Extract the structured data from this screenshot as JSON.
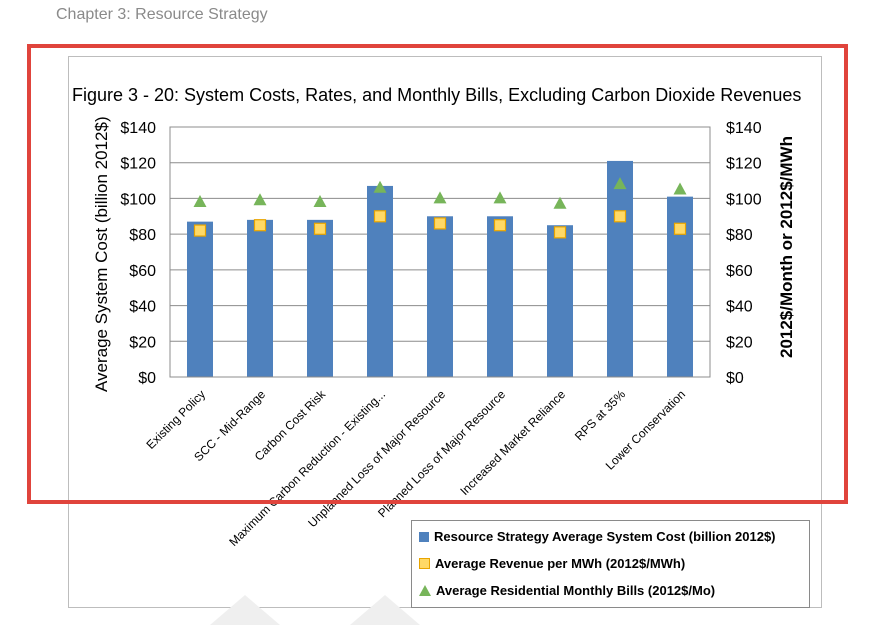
{
  "page": {
    "chapter_header": "Chapter 3: Resource Strategy"
  },
  "chart_data": {
    "type": "bar",
    "title": "Figure 3 - 20:  System Costs, Rates, and Monthly Bills, Excluding Carbon Dioxide Revenues",
    "ylabel": "Average System Cost (billion 2012$)",
    "y2label": "2012$/Month or 2012$/MWh",
    "ylim": [
      0,
      140
    ],
    "y2lim": [
      0,
      140
    ],
    "yticks": [
      "$0",
      "$20",
      "$40",
      "$60",
      "$80",
      "$100",
      "$120",
      "$140"
    ],
    "y2ticks": [
      "$0",
      "$20",
      "$40",
      "$60",
      "$80",
      "$100",
      "$120",
      "$140"
    ],
    "categories": [
      "Existing Policy",
      "SCC - Mid-Range",
      "Carbon Cost Risk",
      "Maximum Carbon Reduction - Existing...",
      "Unplanned Loss of Major Resource",
      "Planned Loss of Major Resource",
      "Increased Market Reliance",
      "RPS at 35%",
      "Lower Conservation"
    ],
    "series": [
      {
        "name": "Resource Strategy Average System Cost (billion 2012$)",
        "kind": "bar",
        "axis": "left",
        "color": "#4f81bd",
        "values": [
          87,
          88,
          88,
          107,
          90,
          90,
          85,
          121,
          101
        ]
      },
      {
        "name": "Average Revenue per MWh (2012$/MWh)",
        "kind": "square",
        "axis": "right",
        "color": "#ffd966",
        "values": [
          82,
          85,
          83,
          90,
          86,
          85,
          81,
          90,
          83
        ]
      },
      {
        "name": "Average Residential Monthly Bills (2012$/Mo)",
        "kind": "triangle",
        "axis": "right",
        "color": "#77b55a",
        "values": [
          98,
          99,
          98,
          106,
          100,
          100,
          97,
          108,
          105
        ]
      }
    ],
    "legend": {
      "position": "bottom-right",
      "items": [
        "Resource Strategy Average System Cost (billion 2012$)",
        "Average Revenue per MWh (2012$/MWh)",
        "Average Residential Monthly Bills (2012$/Mo)"
      ]
    }
  }
}
